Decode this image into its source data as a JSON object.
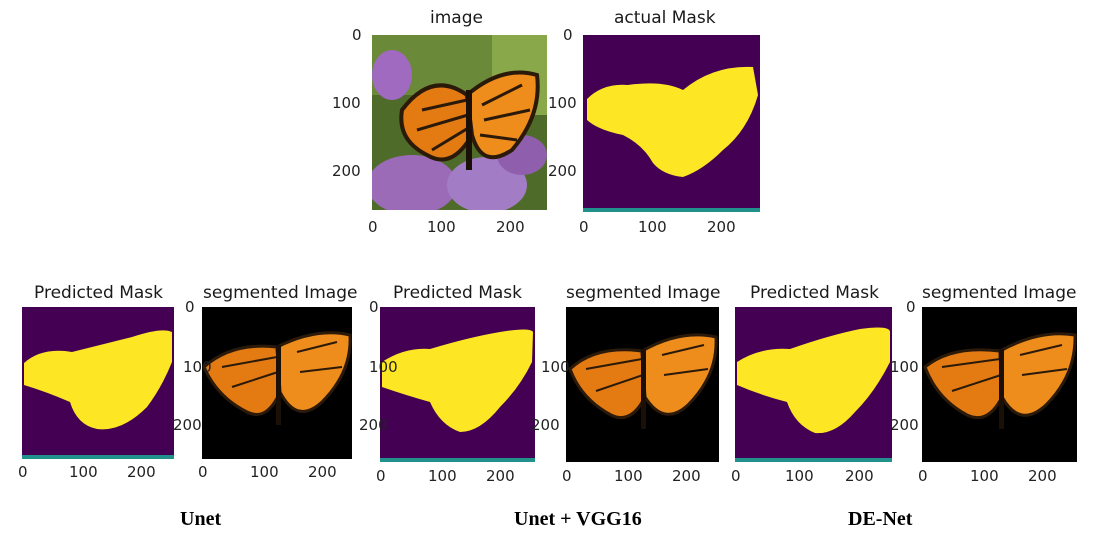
{
  "panels": {
    "image": {
      "title": "image"
    },
    "actual_mask": {
      "title": "actual Mask"
    },
    "unet_pred": {
      "title": "Predicted Mask"
    },
    "unet_seg": {
      "title": "segmented Image"
    },
    "vgg_pred": {
      "title": "Predicted Mask"
    },
    "vgg_seg": {
      "title": "segmented Image"
    },
    "denet_pred": {
      "title": "Predicted Mask"
    },
    "denet_seg": {
      "title": "segmented Image"
    }
  },
  "ticks": {
    "y": [
      "0",
      "100",
      "200"
    ],
    "x": [
      "0",
      "100",
      "200"
    ]
  },
  "captions": {
    "unet": "Unet",
    "unet_vgg16": "Unet + VGG16",
    "denet": "DE-Net"
  },
  "colors": {
    "mask_background": "#440154",
    "mask_foreground": "#fde725",
    "mask_edge": "#21918c",
    "segment_background": "#000000",
    "wing_orange": "#e07a10",
    "wing_veins": "#2b1a0a"
  }
}
